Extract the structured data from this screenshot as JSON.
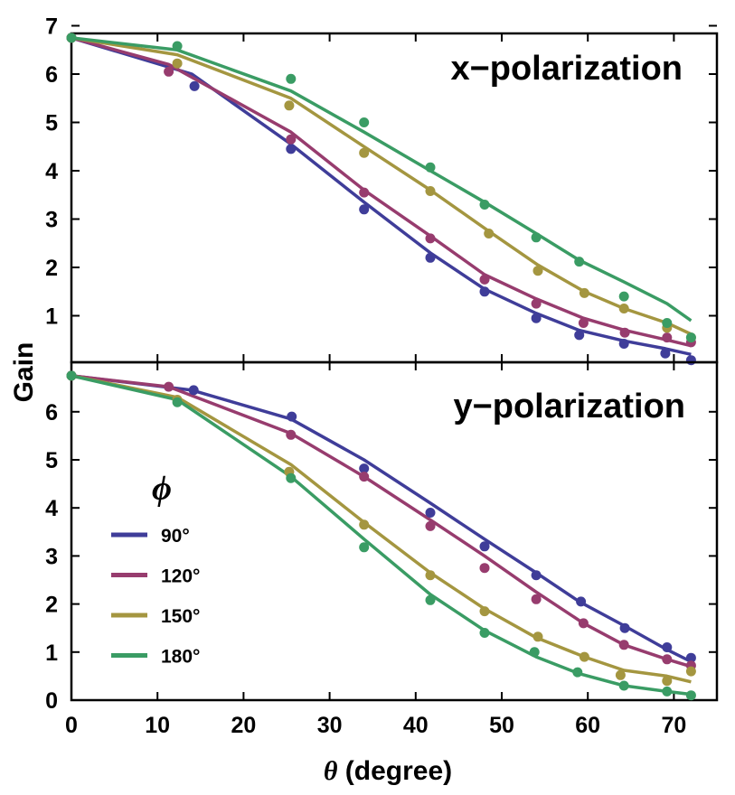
{
  "chart_data": [
    {
      "type": "line",
      "panel": "top",
      "title": "x−polarization",
      "xlabel_symbol": "θ",
      "xlabel_text": " (degree)",
      "ylabel": "Gain",
      "xlim": [
        0,
        75
      ],
      "ylim": [
        0,
        7
      ],
      "xticks": [
        0,
        10,
        20,
        30,
        40,
        50,
        60,
        70
      ],
      "yticks": [
        1,
        2,
        3,
        4,
        5,
        6,
        7
      ],
      "series": [
        {
          "name": "90°",
          "color": "#3f3d99",
          "line_x": [
            0,
            14,
            25.5,
            34,
            41.7,
            48,
            54,
            59,
            64.2,
            69,
            72
          ],
          "line_y": [
            6.75,
            6.0,
            4.55,
            3.35,
            2.3,
            1.55,
            1.05,
            0.7,
            0.48,
            0.32,
            0.2
          ],
          "points_x": [
            0,
            14.3,
            25.5,
            34,
            41.7,
            48,
            54,
            59,
            64.2,
            69,
            72
          ],
          "points_y": [
            6.75,
            5.75,
            4.45,
            3.2,
            2.2,
            1.5,
            0.95,
            0.6,
            0.42,
            0.22,
            0.08
          ]
        },
        {
          "name": "120°",
          "color": "#973c6e",
          "line_x": [
            0,
            11.3,
            25.5,
            34,
            41.7,
            48,
            54,
            59.5,
            64.3,
            69.2,
            72
          ],
          "line_y": [
            6.75,
            6.2,
            4.8,
            3.6,
            2.65,
            1.85,
            1.35,
            0.95,
            0.7,
            0.5,
            0.38
          ],
          "points_x": [
            0,
            11.3,
            25.5,
            34,
            41.7,
            48,
            54,
            59.5,
            64.3,
            69.2,
            72
          ],
          "points_y": [
            6.75,
            6.05,
            4.65,
            3.55,
            2.6,
            1.75,
            1.25,
            0.85,
            0.65,
            0.55,
            0.45
          ]
        },
        {
          "name": "150°",
          "color": "#a49640",
          "line_x": [
            0,
            12.3,
            25.5,
            34,
            41.7,
            48.5,
            54.2,
            59.6,
            64.2,
            69.2,
            72
          ],
          "line_y": [
            6.75,
            6.4,
            5.5,
            4.5,
            3.6,
            2.75,
            2.05,
            1.5,
            1.15,
            0.85,
            0.62
          ],
          "points_x": [
            0,
            12.3,
            25.3,
            34,
            41.7,
            48.5,
            54.2,
            59.6,
            64.2,
            69.2,
            72
          ],
          "points_y": [
            6.75,
            6.22,
            5.35,
            4.37,
            3.58,
            2.7,
            1.93,
            1.47,
            1.15,
            0.75,
            0.55
          ]
        },
        {
          "name": "180°",
          "color": "#3a9c64",
          "line_x": [
            0,
            12.3,
            25.5,
            34,
            41.7,
            48,
            54,
            59,
            64.2,
            69.2,
            72
          ],
          "line_y": [
            6.75,
            6.5,
            5.65,
            4.8,
            4.0,
            3.35,
            2.7,
            2.15,
            1.7,
            1.25,
            0.9
          ],
          "points_x": [
            0,
            12.3,
            25.5,
            34,
            41.7,
            48,
            54,
            59,
            64.2,
            69.2,
            72
          ],
          "points_y": [
            6.75,
            6.58,
            5.9,
            5.0,
            4.07,
            3.3,
            2.62,
            2.12,
            1.4,
            0.85,
            0.55
          ]
        }
      ]
    },
    {
      "type": "line",
      "panel": "bottom",
      "title": "y−polarization",
      "xlabel_symbol": "θ",
      "xlabel_text": " (degree)",
      "ylabel": "Gain",
      "xlim": [
        0,
        75
      ],
      "ylim": [
        0,
        7
      ],
      "xticks": [
        0,
        10,
        20,
        30,
        40,
        50,
        60,
        70
      ],
      "yticks": [
        0,
        1,
        2,
        3,
        4,
        5,
        6
      ],
      "series": [
        {
          "name": "90°",
          "color": "#3f3d99",
          "line_x": [
            0,
            14,
            25.5,
            34,
            41.7,
            48,
            54,
            59,
            64.2,
            69.2,
            72
          ],
          "line_y": [
            6.75,
            6.45,
            5.85,
            5.0,
            4.1,
            3.35,
            2.65,
            2.05,
            1.55,
            1.05,
            0.8
          ],
          "points_x": [
            0,
            14.2,
            25.6,
            34,
            41.7,
            48,
            54,
            59.2,
            64.3,
            69.2,
            72
          ],
          "points_y": [
            6.75,
            6.45,
            5.9,
            4.82,
            3.9,
            3.2,
            2.6,
            2.05,
            1.5,
            1.1,
            0.88
          ]
        },
        {
          "name": "120°",
          "color": "#973c6e",
          "line_x": [
            0,
            11.3,
            25.5,
            34,
            41.7,
            48,
            54,
            59.5,
            64.2,
            69.2,
            72
          ],
          "line_y": [
            6.75,
            6.52,
            5.55,
            4.65,
            3.75,
            3.0,
            2.25,
            1.6,
            1.15,
            0.85,
            0.7
          ],
          "points_x": [
            0,
            11.3,
            25.5,
            34,
            41.7,
            48,
            54,
            59.5,
            64.2,
            69.2,
            72
          ],
          "points_y": [
            6.75,
            6.52,
            5.52,
            4.65,
            3.62,
            2.75,
            2.1,
            1.6,
            1.15,
            0.85,
            0.72
          ]
        },
        {
          "name": "150°",
          "color": "#a49640",
          "line_x": [
            0,
            12.3,
            25.5,
            34,
            41.7,
            48,
            54,
            59.6,
            64.2,
            69.2,
            72
          ],
          "line_y": [
            6.75,
            6.3,
            4.9,
            3.7,
            2.65,
            1.9,
            1.3,
            0.9,
            0.62,
            0.5,
            0.38
          ],
          "points_x": [
            0,
            12.3,
            25.3,
            34,
            41.7,
            48,
            54.2,
            59.6,
            63.8,
            69.2,
            72
          ],
          "points_y": [
            6.75,
            6.25,
            4.75,
            3.65,
            2.6,
            1.85,
            1.32,
            0.9,
            0.52,
            0.4,
            0.6
          ]
        },
        {
          "name": "180°",
          "color": "#3a9c64",
          "line_x": [
            0,
            12.3,
            25.5,
            34,
            41.7,
            48,
            54,
            59,
            64.2,
            69.2,
            72
          ],
          "line_y": [
            6.75,
            6.25,
            4.65,
            3.35,
            2.2,
            1.45,
            0.9,
            0.55,
            0.3,
            0.18,
            0.12
          ],
          "points_x": [
            0,
            12.3,
            25.5,
            34,
            41.7,
            48,
            53.8,
            58.8,
            64.2,
            69.2,
            72
          ],
          "points_y": [
            6.75,
            6.2,
            4.62,
            3.18,
            2.08,
            1.4,
            1.0,
            0.58,
            0.3,
            0.18,
            0.1
          ]
        }
      ]
    }
  ],
  "legend": {
    "title": "ϕ",
    "entries": [
      {
        "label": "90°",
        "color": "#3f3d99"
      },
      {
        "label": "120°",
        "color": "#973c6e"
      },
      {
        "label": "150°",
        "color": "#a49640"
      },
      {
        "label": "180°",
        "color": "#3a9c64"
      }
    ]
  }
}
